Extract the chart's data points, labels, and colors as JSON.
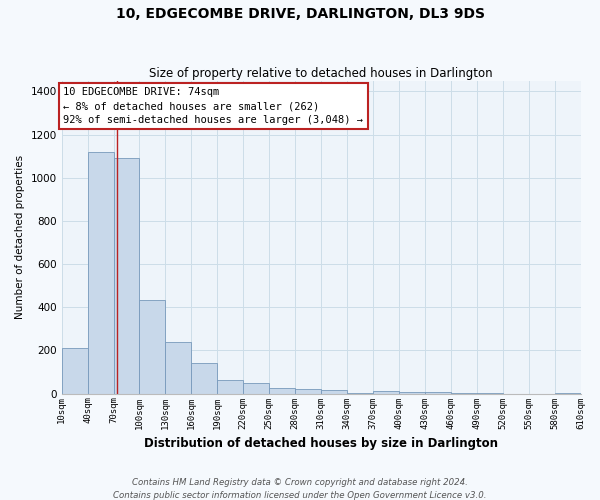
{
  "title": "10, EDGECOMBE DRIVE, DARLINGTON, DL3 9DS",
  "subtitle": "Size of property relative to detached houses in Darlington",
  "xlabel": "Distribution of detached houses by size in Darlington",
  "ylabel": "Number of detached properties",
  "footer_lines": [
    "Contains HM Land Registry data © Crown copyright and database right 2024.",
    "Contains public sector information licensed under the Open Government Licence v3.0."
  ],
  "bin_edges": [
    10,
    40,
    70,
    100,
    130,
    160,
    190,
    220,
    250,
    280,
    310,
    340,
    370,
    400,
    430,
    460,
    490,
    520,
    550,
    580,
    610
  ],
  "bar_heights": [
    210,
    1120,
    1090,
    435,
    240,
    143,
    62,
    48,
    25,
    22,
    18,
    5,
    10,
    8,
    8,
    3,
    3,
    0,
    0,
    3
  ],
  "bar_color": "#c8d8ea",
  "bar_edge_color": "#7799bb",
  "grid_color": "#ccdde8",
  "background_color": "#eef4fa",
  "fig_background": "#f5f9fd",
  "vline_x": 74,
  "vline_color": "#bb2222",
  "ann_line1": "10 EDGECOMBE DRIVE: 74sqm",
  "ann_line2": "← 8% of detached houses are smaller (262)",
  "ann_line3": "92% of semi-detached houses are larger (3,048) →",
  "ylim": [
    0,
    1450
  ],
  "yticks": [
    0,
    200,
    400,
    600,
    800,
    1000,
    1200,
    1400
  ],
  "tick_labels": [
    "10sqm",
    "40sqm",
    "70sqm",
    "100sqm",
    "130sqm",
    "160sqm",
    "190sqm",
    "220sqm",
    "250sqm",
    "280sqm",
    "310sqm",
    "340sqm",
    "370sqm",
    "400sqm",
    "430sqm",
    "460sqm",
    "490sqm",
    "520sqm",
    "550sqm",
    "580sqm",
    "610sqm"
  ]
}
